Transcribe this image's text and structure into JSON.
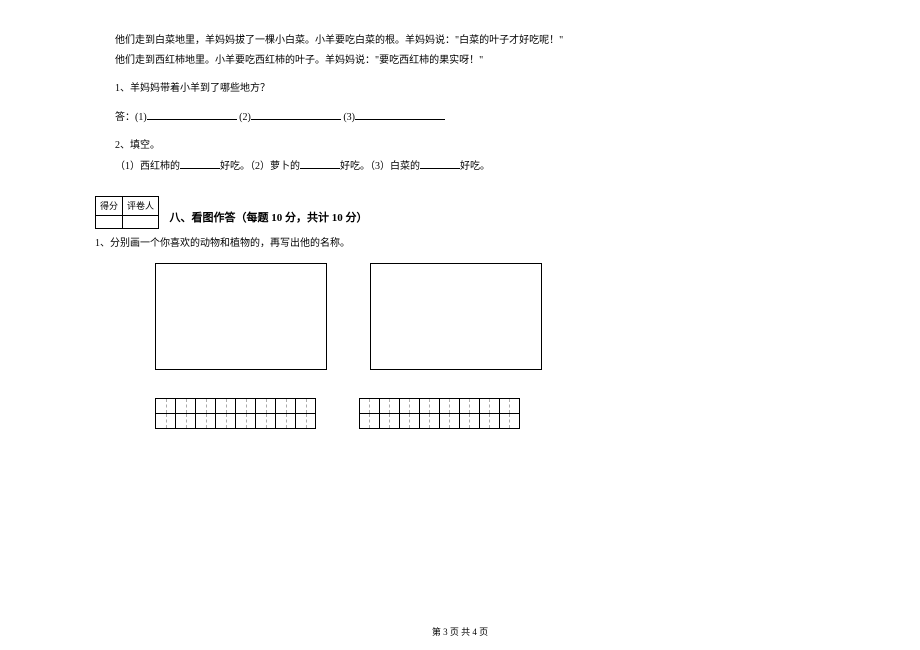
{
  "passage": {
    "p1": "他们走到白菜地里，羊妈妈拔了一棵小白菜。小羊要吃白菜的根。羊妈妈说：\"白菜的叶子才好吃呢！\"",
    "p2": "他们走到西红柿地里。小羊要吃西红柿的叶子。羊妈妈说：\"要吃西红柿的果实呀！\""
  },
  "q1": {
    "prompt": "1、羊妈妈带着小羊到了哪些地方？",
    "answer_prefix": "答：(1)",
    "sep2": "(2)",
    "sep3": "(3)"
  },
  "q2": {
    "prompt": "2、填空。",
    "item1a": "（1）西红柿的",
    "item1b": "好吃。（2）萝卜的",
    "item1c": "好吃。（3）白菜的",
    "item1d": "好吃。"
  },
  "score": {
    "h1": "得分",
    "h2": "评卷人"
  },
  "section8": {
    "title": "八、看图作答（每题 10 分，共计 10 分）",
    "q": "1、分别画一个你喜欢的动物和植物的，再写出他的名称。"
  },
  "footer": {
    "text": "第 3 页  共 4 页"
  },
  "colors": {
    "text": "#000000",
    "bg": "#ffffff",
    "dashed": "#aaaaaa"
  },
  "fonts": {
    "body_size_pt": 10,
    "title_size_pt": 11,
    "footer_size_pt": 9,
    "family": "SimSun"
  }
}
